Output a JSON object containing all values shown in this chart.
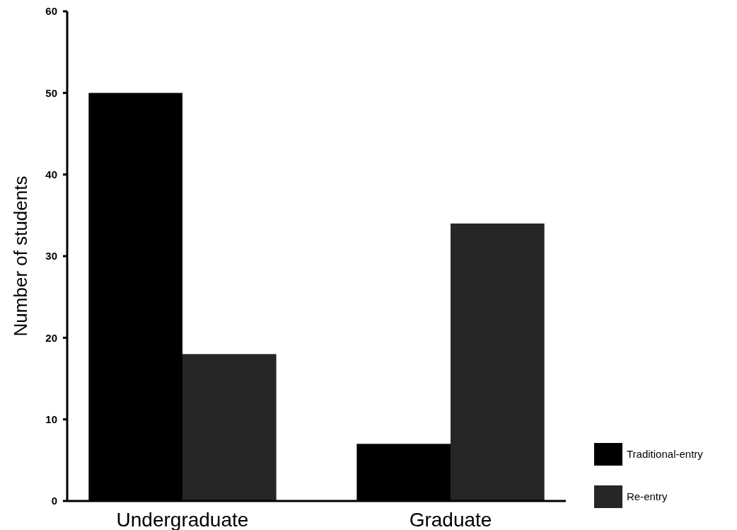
{
  "chart_data": {
    "type": "bar",
    "ylabel": "Number of students",
    "categories": [
      "Undergraduate",
      "Graduate"
    ],
    "series": [
      {
        "name": "Traditional-entry",
        "color": "#000000",
        "values": [
          50,
          7
        ]
      },
      {
        "name": "Re-entry",
        "color": "#262626",
        "values": [
          18,
          34
        ]
      }
    ],
    "ylim": [
      0,
      60
    ],
    "yticks": [
      0,
      10,
      20,
      30,
      40,
      50,
      60
    ],
    "grid": false,
    "legend": "bottom right"
  }
}
